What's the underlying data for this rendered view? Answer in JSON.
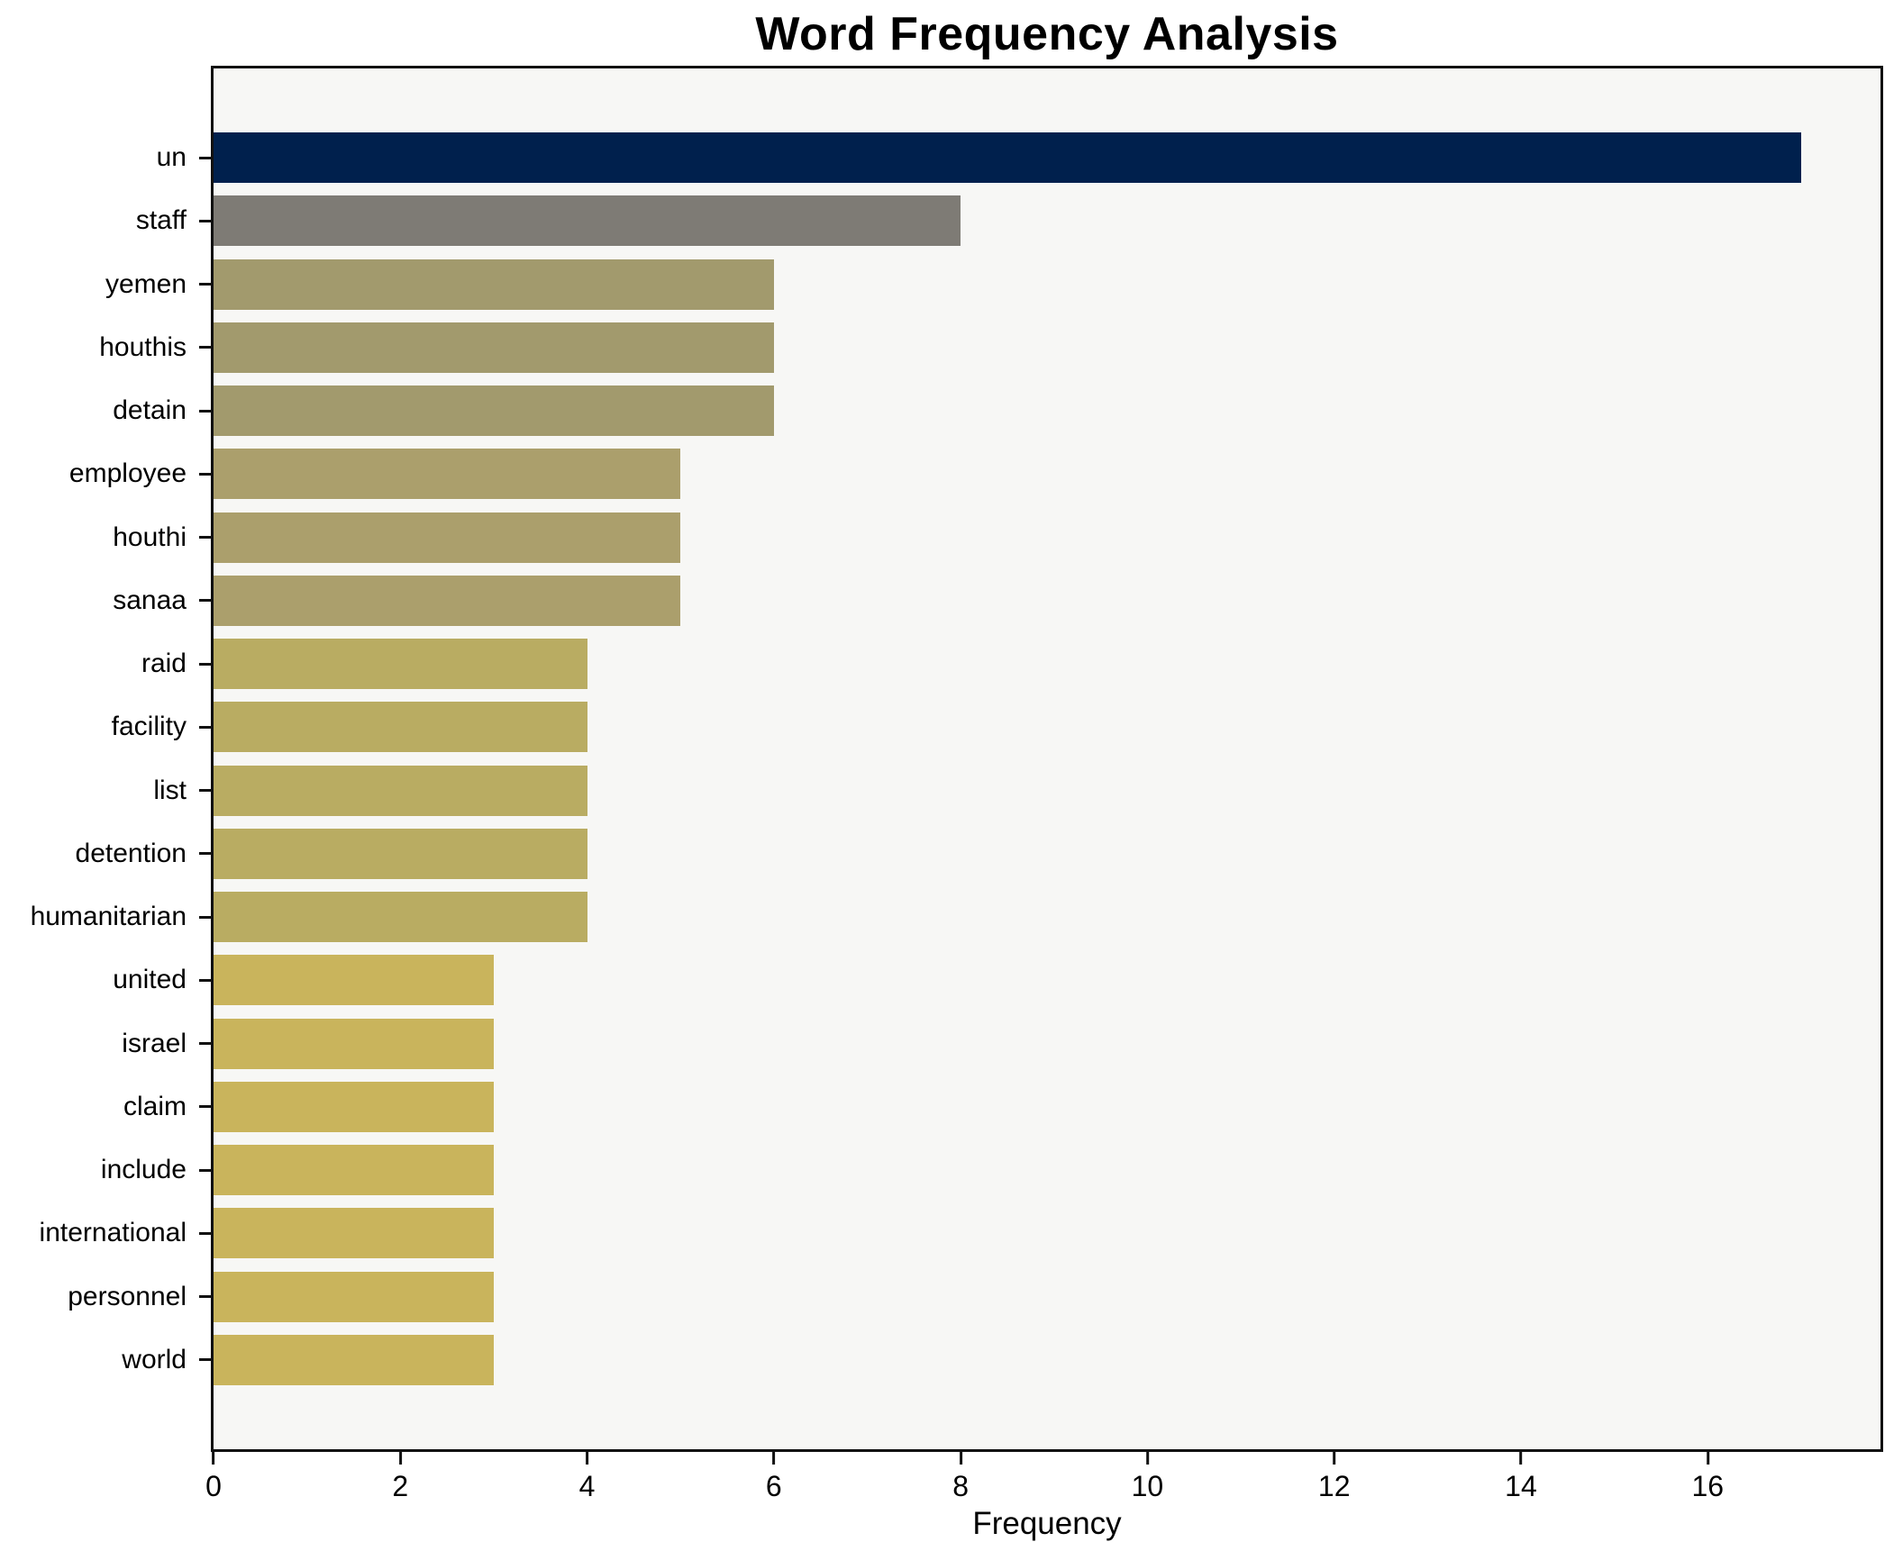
{
  "chart_data": {
    "type": "bar",
    "orientation": "horizontal",
    "title": "Word Frequency Analysis",
    "xlabel": "Frequency",
    "ylabel": "",
    "categories": [
      "un",
      "staff",
      "yemen",
      "houthis",
      "detain",
      "employee",
      "houthi",
      "sanaa",
      "raid",
      "facility",
      "list",
      "detention",
      "humanitarian",
      "united",
      "israel",
      "claim",
      "include",
      "international",
      "personnel",
      "world"
    ],
    "values": [
      17,
      8,
      6,
      6,
      6,
      5,
      5,
      5,
      4,
      4,
      4,
      4,
      4,
      3,
      3,
      3,
      3,
      3,
      3,
      3
    ],
    "bar_colors": [
      "#00204d",
      "#7e7b75",
      "#a29a6d",
      "#a29a6d",
      "#a29a6d",
      "#ab9f6c",
      "#ab9f6c",
      "#ab9f6c",
      "#b9ac62",
      "#b9ac62",
      "#b9ac62",
      "#b9ac62",
      "#b9ac62",
      "#c9b45c",
      "#c9b45c",
      "#c9b45c",
      "#c9b45c",
      "#c9b45c",
      "#c9b45c",
      "#c9b45c"
    ],
    "xlim": [
      0,
      17.85
    ],
    "xticks": [
      0,
      2,
      4,
      6,
      8,
      10,
      12,
      14,
      16
    ],
    "grid": false,
    "legend_position": "none",
    "colors": {
      "plot_background": "#f7f7f5",
      "figure_background": "#ffffff",
      "axis_border": "#111111",
      "text": "#000000"
    }
  }
}
